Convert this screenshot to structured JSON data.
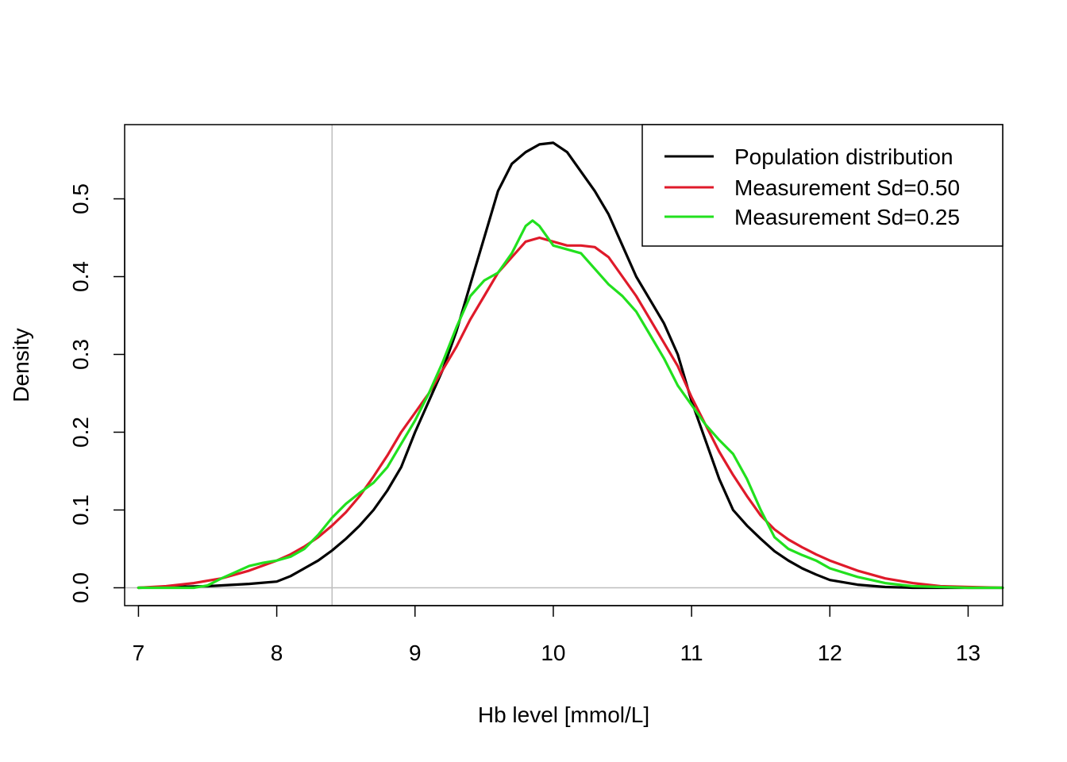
{
  "chart_data": {
    "type": "line",
    "title": "",
    "xlabel": "Hb level [mmol/L]",
    "ylabel": "Density",
    "xlim": [
      6.9,
      13.25
    ],
    "ylim": [
      0,
      0.58
    ],
    "x_ticks": [
      "7",
      "8",
      "9",
      "10",
      "11",
      "12",
      "13"
    ],
    "y_ticks": [
      "0.0",
      "0.1",
      "0.2",
      "0.3",
      "0.4",
      "0.5"
    ],
    "reference_lines": {
      "vertical_x": 8.4,
      "horizontal_y": 0,
      "color": "#bebebe"
    },
    "legend_position": "top-right",
    "series": [
      {
        "name": "Population distribution",
        "color": "#000000",
        "x": [
          7.0,
          7.5,
          7.8,
          8.0,
          8.1,
          8.2,
          8.3,
          8.4,
          8.5,
          8.6,
          8.7,
          8.8,
          8.9,
          9.0,
          9.1,
          9.2,
          9.3,
          9.4,
          9.5,
          9.6,
          9.7,
          9.8,
          9.9,
          10.0,
          10.1,
          10.2,
          10.3,
          10.4,
          10.5,
          10.6,
          10.7,
          10.8,
          10.9,
          11.0,
          11.1,
          11.2,
          11.3,
          11.4,
          11.5,
          11.6,
          11.7,
          11.8,
          11.9,
          12.0,
          12.2,
          12.4,
          12.6,
          12.8,
          13.0,
          13.25
        ],
        "y": [
          0.0,
          0.002,
          0.005,
          0.008,
          0.015,
          0.025,
          0.035,
          0.048,
          0.063,
          0.08,
          0.1,
          0.125,
          0.155,
          0.2,
          0.24,
          0.28,
          0.33,
          0.39,
          0.45,
          0.51,
          0.545,
          0.56,
          0.57,
          0.572,
          0.56,
          0.535,
          0.51,
          0.48,
          0.44,
          0.4,
          0.37,
          0.34,
          0.3,
          0.24,
          0.19,
          0.14,
          0.1,
          0.08,
          0.063,
          0.047,
          0.035,
          0.025,
          0.017,
          0.01,
          0.004,
          0.001,
          0.0,
          0.0,
          0.0,
          0.0
        ]
      },
      {
        "name": "Measurement Sd=0.50",
        "color": "#df1a2a",
        "x": [
          7.0,
          7.2,
          7.4,
          7.6,
          7.8,
          8.0,
          8.1,
          8.2,
          8.3,
          8.4,
          8.5,
          8.6,
          8.7,
          8.8,
          8.9,
          9.0,
          9.1,
          9.2,
          9.3,
          9.4,
          9.5,
          9.6,
          9.7,
          9.8,
          9.9,
          10.0,
          10.1,
          10.2,
          10.3,
          10.4,
          10.5,
          10.6,
          10.7,
          10.8,
          10.9,
          11.0,
          11.1,
          11.2,
          11.3,
          11.4,
          11.5,
          11.6,
          11.7,
          11.8,
          11.9,
          12.0,
          12.2,
          12.4,
          12.6,
          12.8,
          13.0,
          13.25
        ],
        "y": [
          0.0,
          0.002,
          0.006,
          0.012,
          0.022,
          0.035,
          0.043,
          0.053,
          0.065,
          0.08,
          0.097,
          0.118,
          0.143,
          0.17,
          0.2,
          0.225,
          0.25,
          0.28,
          0.31,
          0.345,
          0.375,
          0.405,
          0.425,
          0.445,
          0.45,
          0.445,
          0.44,
          0.44,
          0.438,
          0.425,
          0.4,
          0.375,
          0.345,
          0.315,
          0.285,
          0.245,
          0.21,
          0.175,
          0.145,
          0.118,
          0.093,
          0.075,
          0.062,
          0.052,
          0.043,
          0.035,
          0.022,
          0.012,
          0.006,
          0.002,
          0.001,
          0.0
        ]
      },
      {
        "name": "Measurement Sd=0.25",
        "color": "#22e01e",
        "x": [
          7.0,
          7.2,
          7.4,
          7.5,
          7.6,
          7.7,
          7.8,
          7.9,
          8.0,
          8.1,
          8.2,
          8.3,
          8.4,
          8.5,
          8.6,
          8.7,
          8.8,
          8.9,
          9.0,
          9.1,
          9.2,
          9.3,
          9.4,
          9.5,
          9.6,
          9.7,
          9.8,
          9.85,
          9.9,
          10.0,
          10.1,
          10.2,
          10.3,
          10.4,
          10.5,
          10.6,
          10.7,
          10.8,
          10.9,
          11.0,
          11.1,
          11.2,
          11.3,
          11.4,
          11.5,
          11.6,
          11.7,
          11.8,
          11.9,
          12.0,
          12.2,
          12.4,
          12.6,
          12.8,
          13.0,
          13.25
        ],
        "y": [
          0.0,
          0.0,
          0.0,
          0.003,
          0.012,
          0.02,
          0.028,
          0.032,
          0.035,
          0.04,
          0.05,
          0.068,
          0.09,
          0.108,
          0.122,
          0.135,
          0.155,
          0.185,
          0.215,
          0.25,
          0.29,
          0.335,
          0.375,
          0.395,
          0.405,
          0.43,
          0.465,
          0.472,
          0.465,
          0.44,
          0.435,
          0.43,
          0.41,
          0.39,
          0.375,
          0.355,
          0.325,
          0.295,
          0.26,
          0.235,
          0.21,
          0.19,
          0.172,
          0.14,
          0.1,
          0.065,
          0.05,
          0.042,
          0.035,
          0.025,
          0.014,
          0.006,
          0.002,
          0.001,
          0.0,
          0.0
        ]
      }
    ]
  }
}
